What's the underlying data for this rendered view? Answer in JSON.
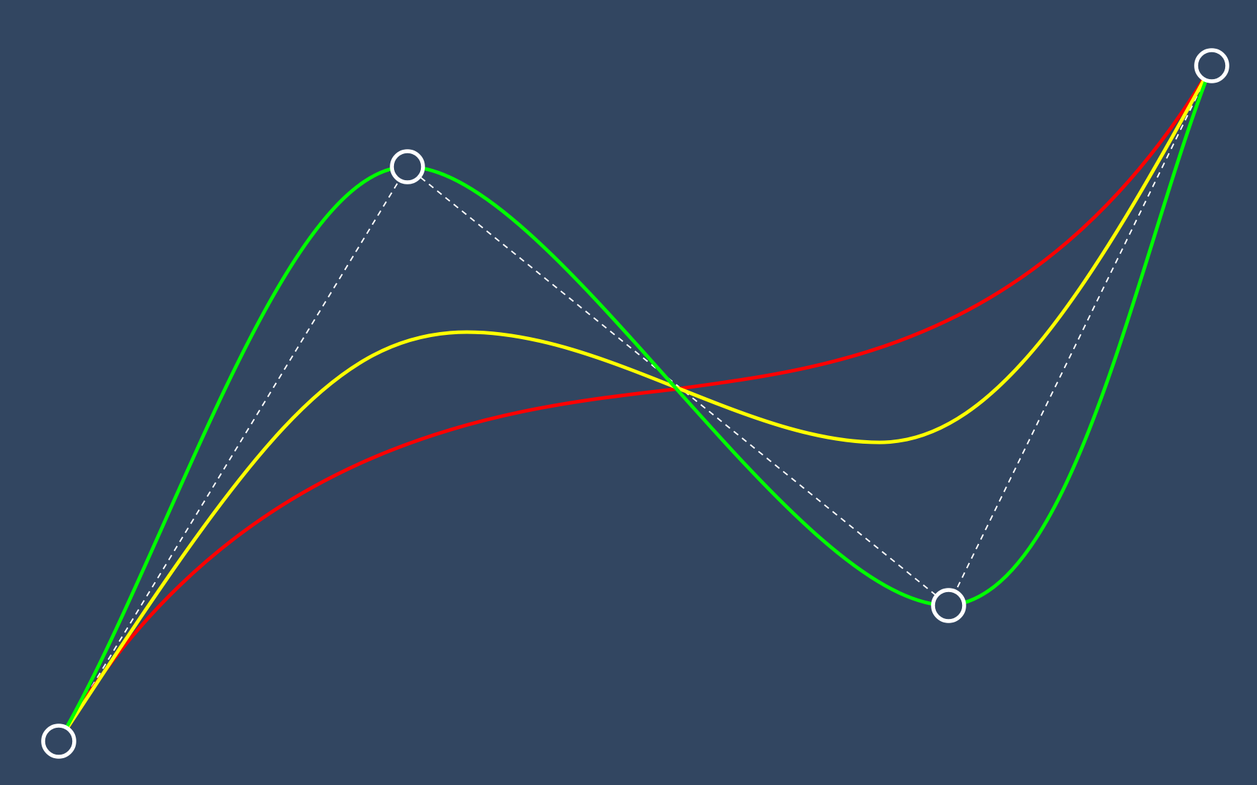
{
  "theme": {
    "background": "#324661",
    "control_polygon": "#ffffff",
    "handle_stroke": "#ffffff",
    "handle_fill": "#324661"
  },
  "curves": [
    {
      "name": "curve-red",
      "color": "#ff0000"
    },
    {
      "name": "curve-yellow",
      "color": "#ffff00"
    },
    {
      "name": "curve-green",
      "color": "#00ff00"
    }
  ],
  "control_points": [
    {
      "name": "control-point-1"
    },
    {
      "name": "control-point-2"
    },
    {
      "name": "control-point-3"
    },
    {
      "name": "control-point-4"
    }
  ]
}
